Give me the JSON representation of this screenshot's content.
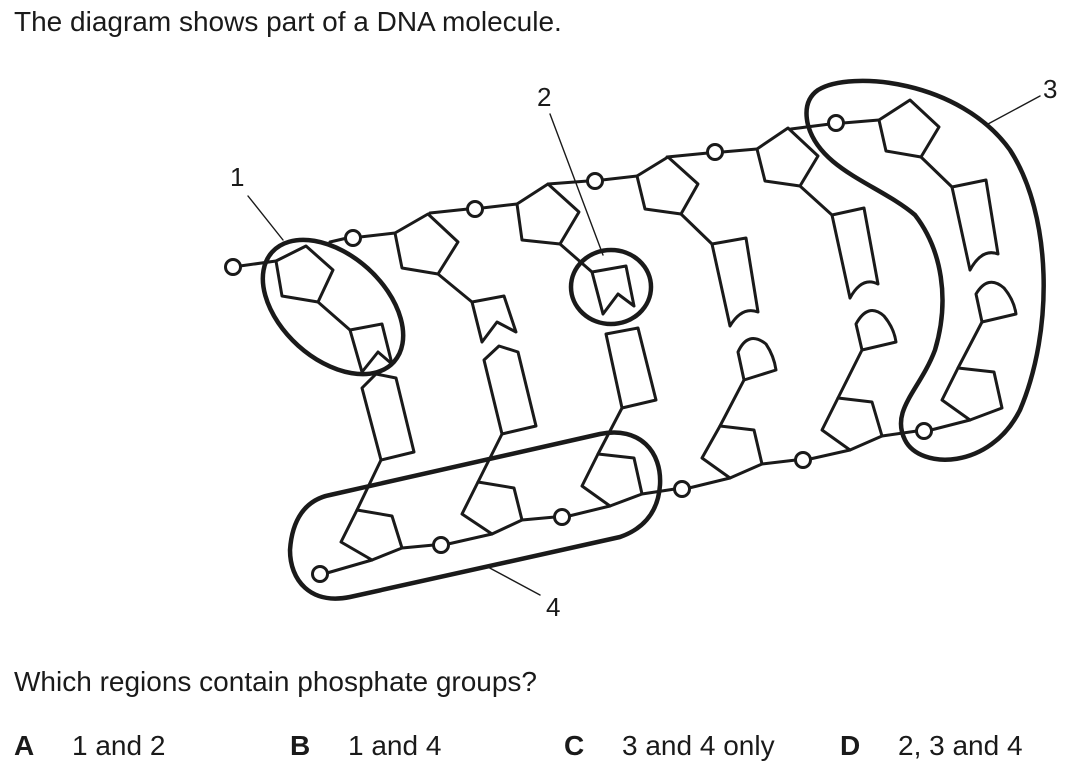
{
  "intro": "The diagram shows part of a DNA molecule.",
  "question": "Which regions contain phosphate groups?",
  "region_labels": [
    "1",
    "2",
    "3",
    "4"
  ],
  "options": [
    {
      "letter": "A",
      "text": "1 and 2"
    },
    {
      "letter": "B",
      "text": "1 and 4"
    },
    {
      "letter": "C",
      "text": "3 and 4 only"
    },
    {
      "letter": "D",
      "text": "2, 3 and 4"
    }
  ],
  "colors": {
    "ink": "#1a1a1a",
    "background": "#ffffff"
  }
}
